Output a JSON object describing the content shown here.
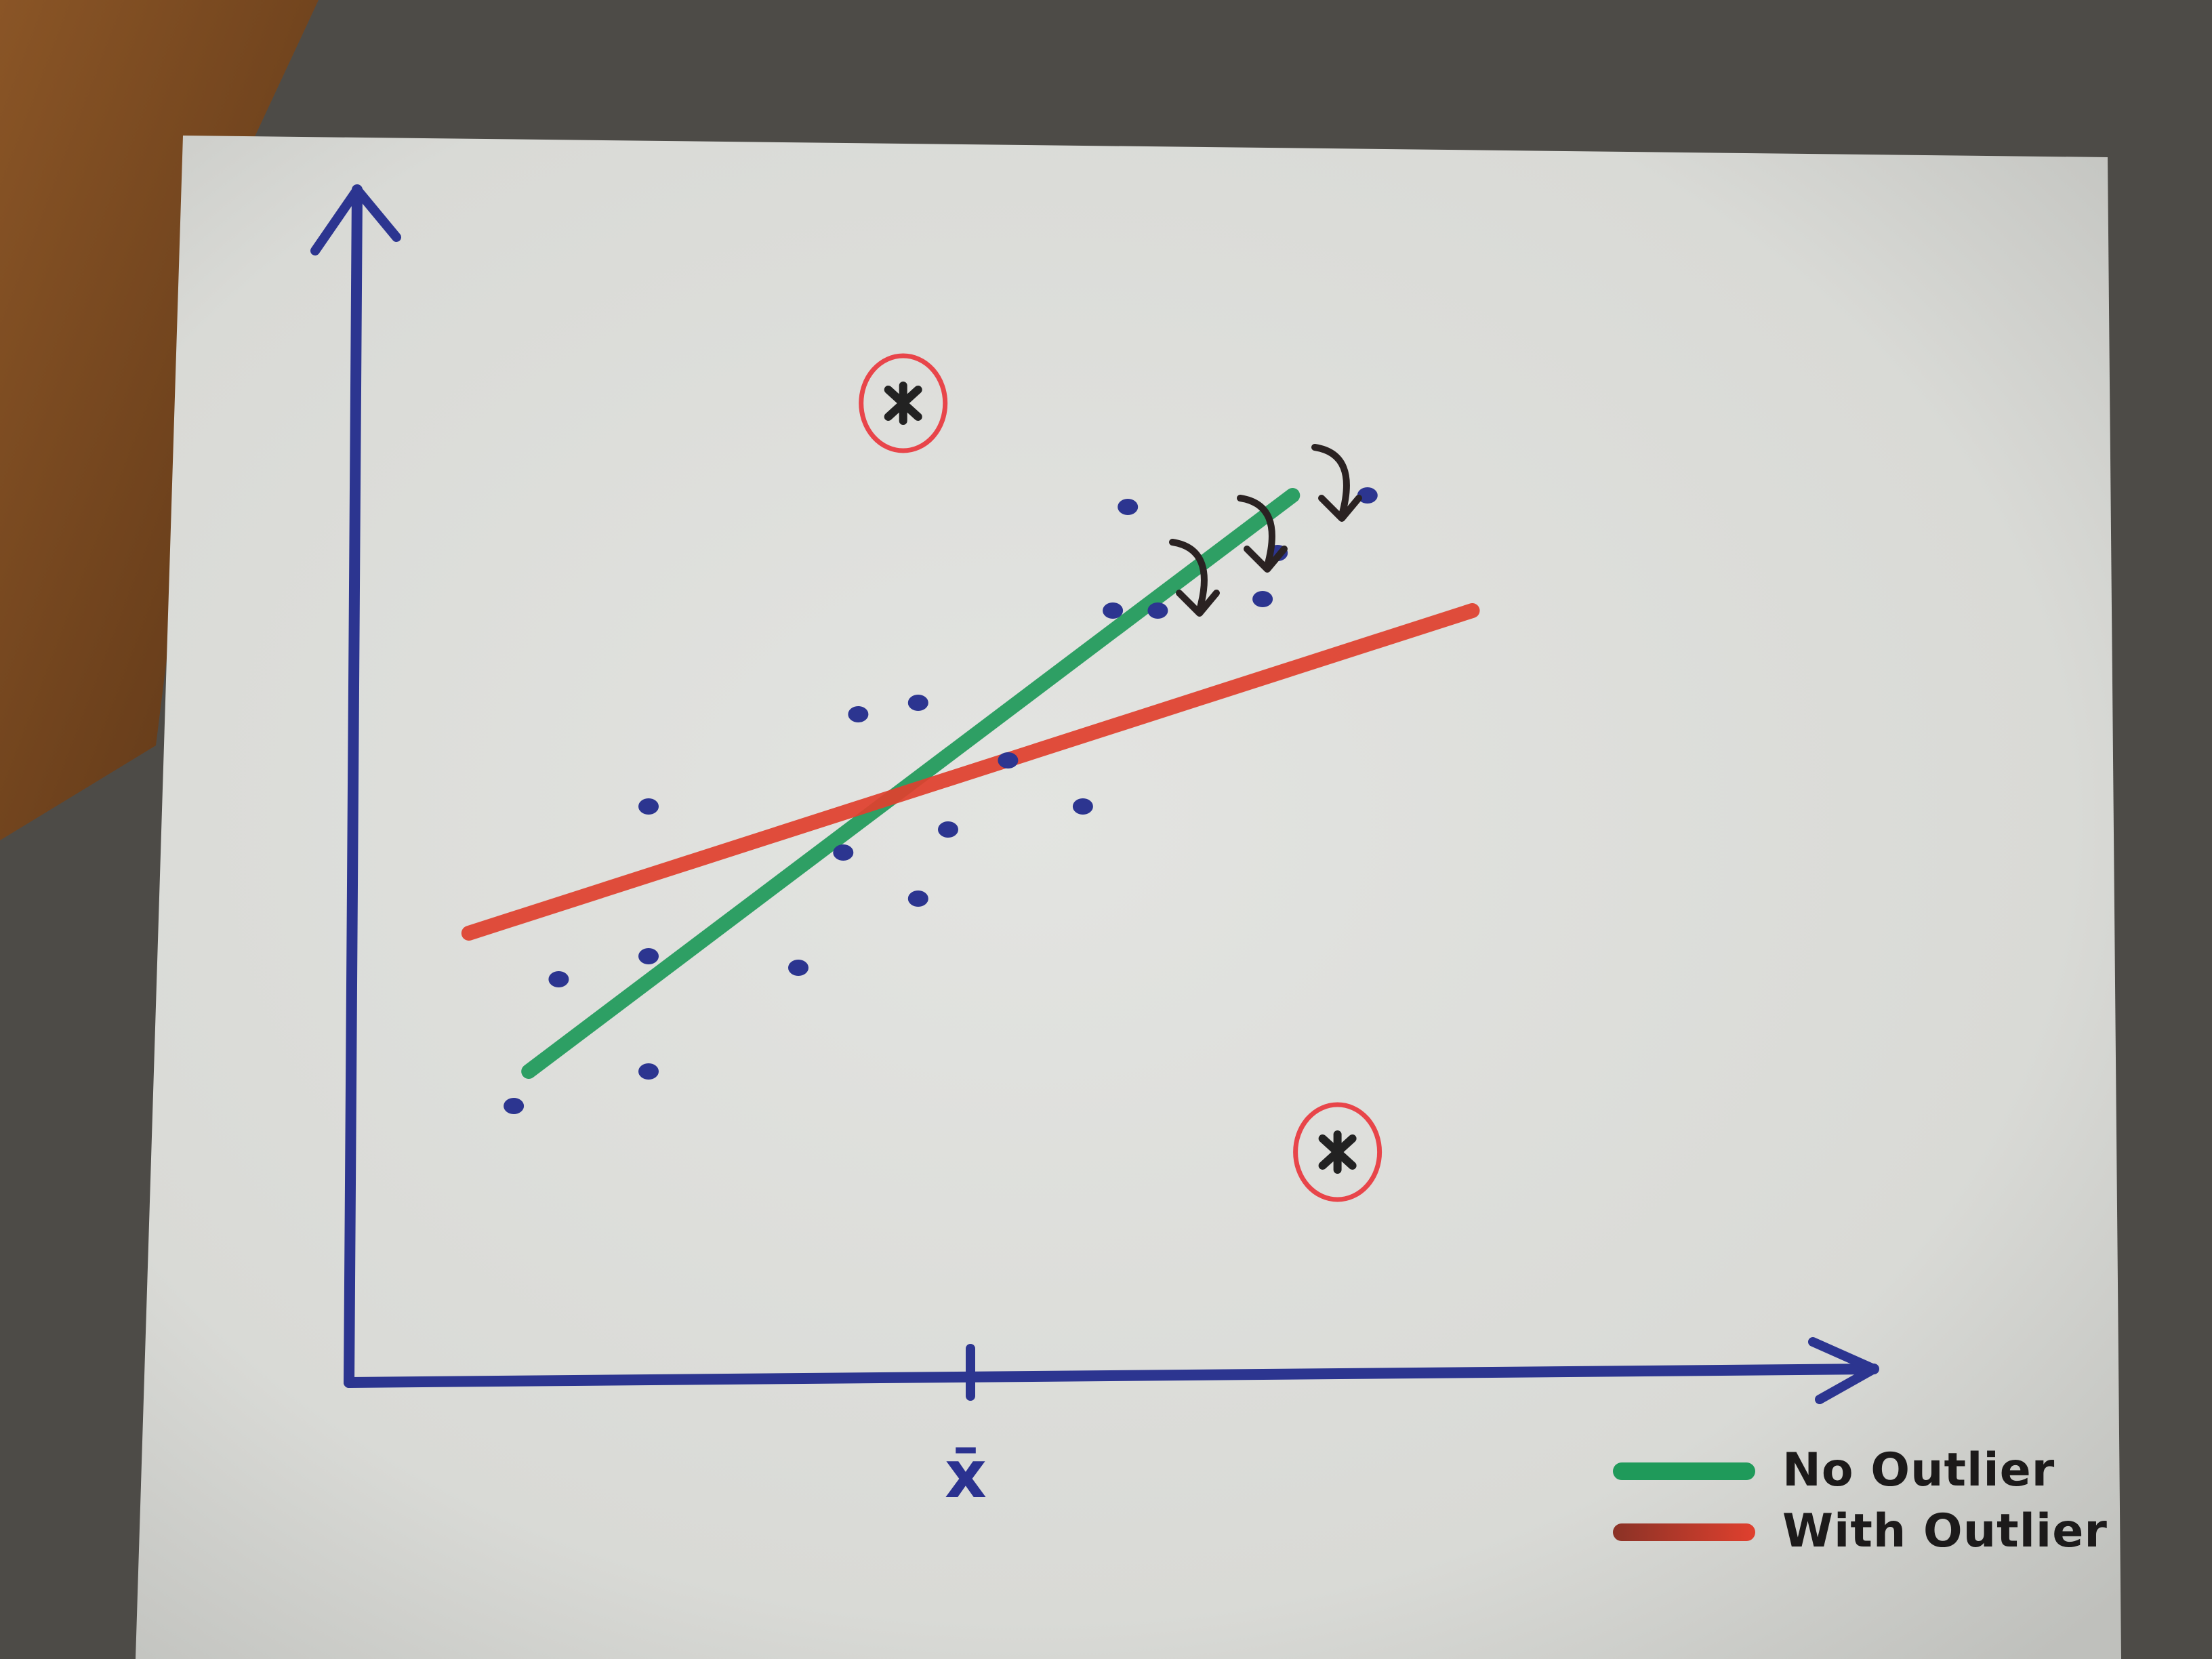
{
  "chart_data": {
    "type": "scatter",
    "title": "",
    "xlabel": "",
    "ylabel": "",
    "x_tick_labels": [
      "x̄"
    ],
    "xlim": [
      0,
      10
    ],
    "ylim": [
      0,
      10
    ],
    "grid": false,
    "legend_position": "bottom-right",
    "points": [
      {
        "x": 1.1,
        "y": 2.4
      },
      {
        "x": 1.4,
        "y": 3.5
      },
      {
        "x": 2.0,
        "y": 3.7
      },
      {
        "x": 2.0,
        "y": 2.7
      },
      {
        "x": 2.0,
        "y": 5.0
      },
      {
        "x": 3.0,
        "y": 3.6
      },
      {
        "x": 3.3,
        "y": 4.6
      },
      {
        "x": 3.4,
        "y": 5.8
      },
      {
        "x": 3.8,
        "y": 4.2
      },
      {
        "x": 3.8,
        "y": 5.9
      },
      {
        "x": 4.0,
        "y": 4.8
      },
      {
        "x": 4.4,
        "y": 5.4
      },
      {
        "x": 4.9,
        "y": 5.0
      },
      {
        "x": 5.1,
        "y": 6.7
      },
      {
        "x": 5.4,
        "y": 6.7
      },
      {
        "x": 5.2,
        "y": 7.6
      },
      {
        "x": 6.2,
        "y": 7.2
      },
      {
        "x": 6.8,
        "y": 7.7
      },
      {
        "x": 6.1,
        "y": 6.8
      }
    ],
    "outliers": [
      {
        "x": 3.7,
        "y": 8.5
      },
      {
        "x": 6.6,
        "y": 2.0
      }
    ],
    "series": [
      {
        "name": "No Outlier",
        "color": "#1f9a5a",
        "from": {
          "x": 1.2,
          "y": 2.7
        },
        "to": {
          "x": 6.3,
          "y": 7.7
        }
      },
      {
        "name": "With Outlier",
        "color": "#e0402e",
        "from": {
          "x": 0.8,
          "y": 3.9
        },
        "to": {
          "x": 7.5,
          "y": 6.7
        }
      }
    ],
    "annotations": [
      "arrows showing the line rotating from the green fit down to the red fit"
    ]
  },
  "colors": {
    "axis": "#2c3590",
    "points": "#2c3590",
    "outlier_mark": "#222222",
    "outlier_circle": "#e8454a",
    "arrow": "#2a2222",
    "paper": "#e6e6e2",
    "desk": "#7a4a22"
  }
}
